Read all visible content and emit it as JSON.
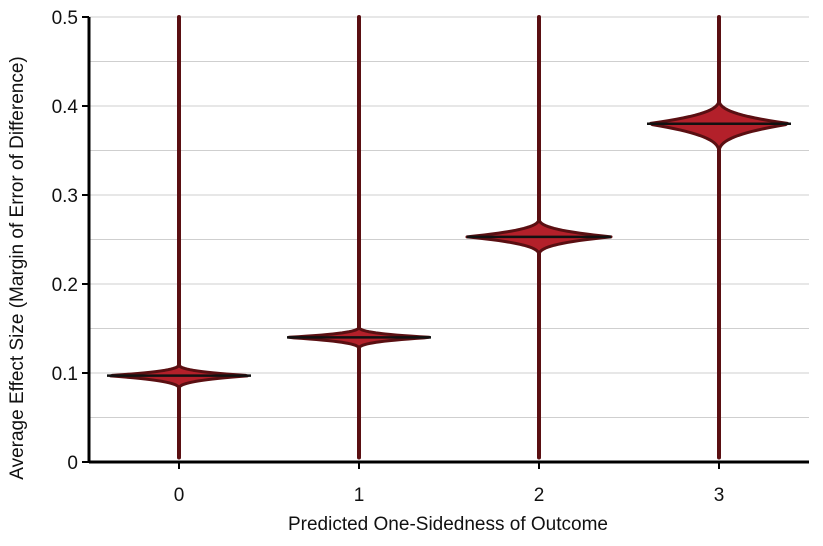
{
  "chart_data": {
    "type": "violin",
    "xlabel": "Predicted One-Sidedness of Outcome",
    "ylabel": "Average Effect Size (Margin of Error of Difference)",
    "categories": [
      "0",
      "1",
      "2",
      "3"
    ],
    "ylim": [
      0,
      0.5
    ],
    "yticks": [
      "0",
      "0.1",
      "0.2",
      "0.3",
      "0.4",
      "0.5"
    ],
    "ytick_values": [
      0,
      0.1,
      0.2,
      0.3,
      0.4,
      0.5
    ],
    "grid": "horizontal",
    "violins": [
      {
        "category": "0",
        "center": 0.097,
        "lower": 0.082,
        "upper": 0.11,
        "min": 0.005,
        "max": 0.5
      },
      {
        "category": "1",
        "center": 0.14,
        "lower": 0.127,
        "upper": 0.152,
        "min": 0.005,
        "max": 0.5
      },
      {
        "category": "2",
        "center": 0.253,
        "lower": 0.232,
        "upper": 0.274,
        "min": 0.005,
        "max": 0.5
      },
      {
        "category": "3",
        "center": 0.38,
        "lower": 0.347,
        "upper": 0.408,
        "min": 0.005,
        "max": 0.5
      }
    ],
    "colors": {
      "fill": "#b3202a",
      "outline": "#5a0f12",
      "median": "#111111",
      "grid": "#cfcfcf",
      "axis": "#000000"
    }
  }
}
